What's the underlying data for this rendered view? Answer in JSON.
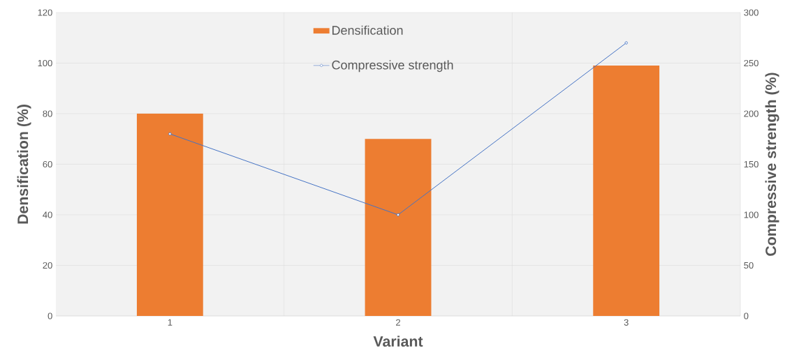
{
  "chart_data": {
    "type": "bar",
    "xlabel": "Variant",
    "ylabel": "Densification (%)",
    "y2label": "Compressive strength (%)",
    "categories": [
      "1",
      "2",
      "3"
    ],
    "series": [
      {
        "name": "Densification",
        "color": "#ed7d31",
        "values": [
          80,
          70,
          99
        ]
      },
      {
        "name": "Compressive strength",
        "type": "line",
        "axis": "y2",
        "color": "#4472c4",
        "marker": "circle",
        "values": [
          180,
          100,
          270
        ]
      }
    ],
    "ylim": [
      0,
      120
    ],
    "yticks": [
      0,
      20,
      40,
      60,
      80,
      100,
      120
    ],
    "y2lim": [
      0,
      300
    ],
    "y2ticks": [
      0,
      50,
      100,
      150,
      200,
      250,
      300
    ],
    "grid": true,
    "legend": "top"
  }
}
